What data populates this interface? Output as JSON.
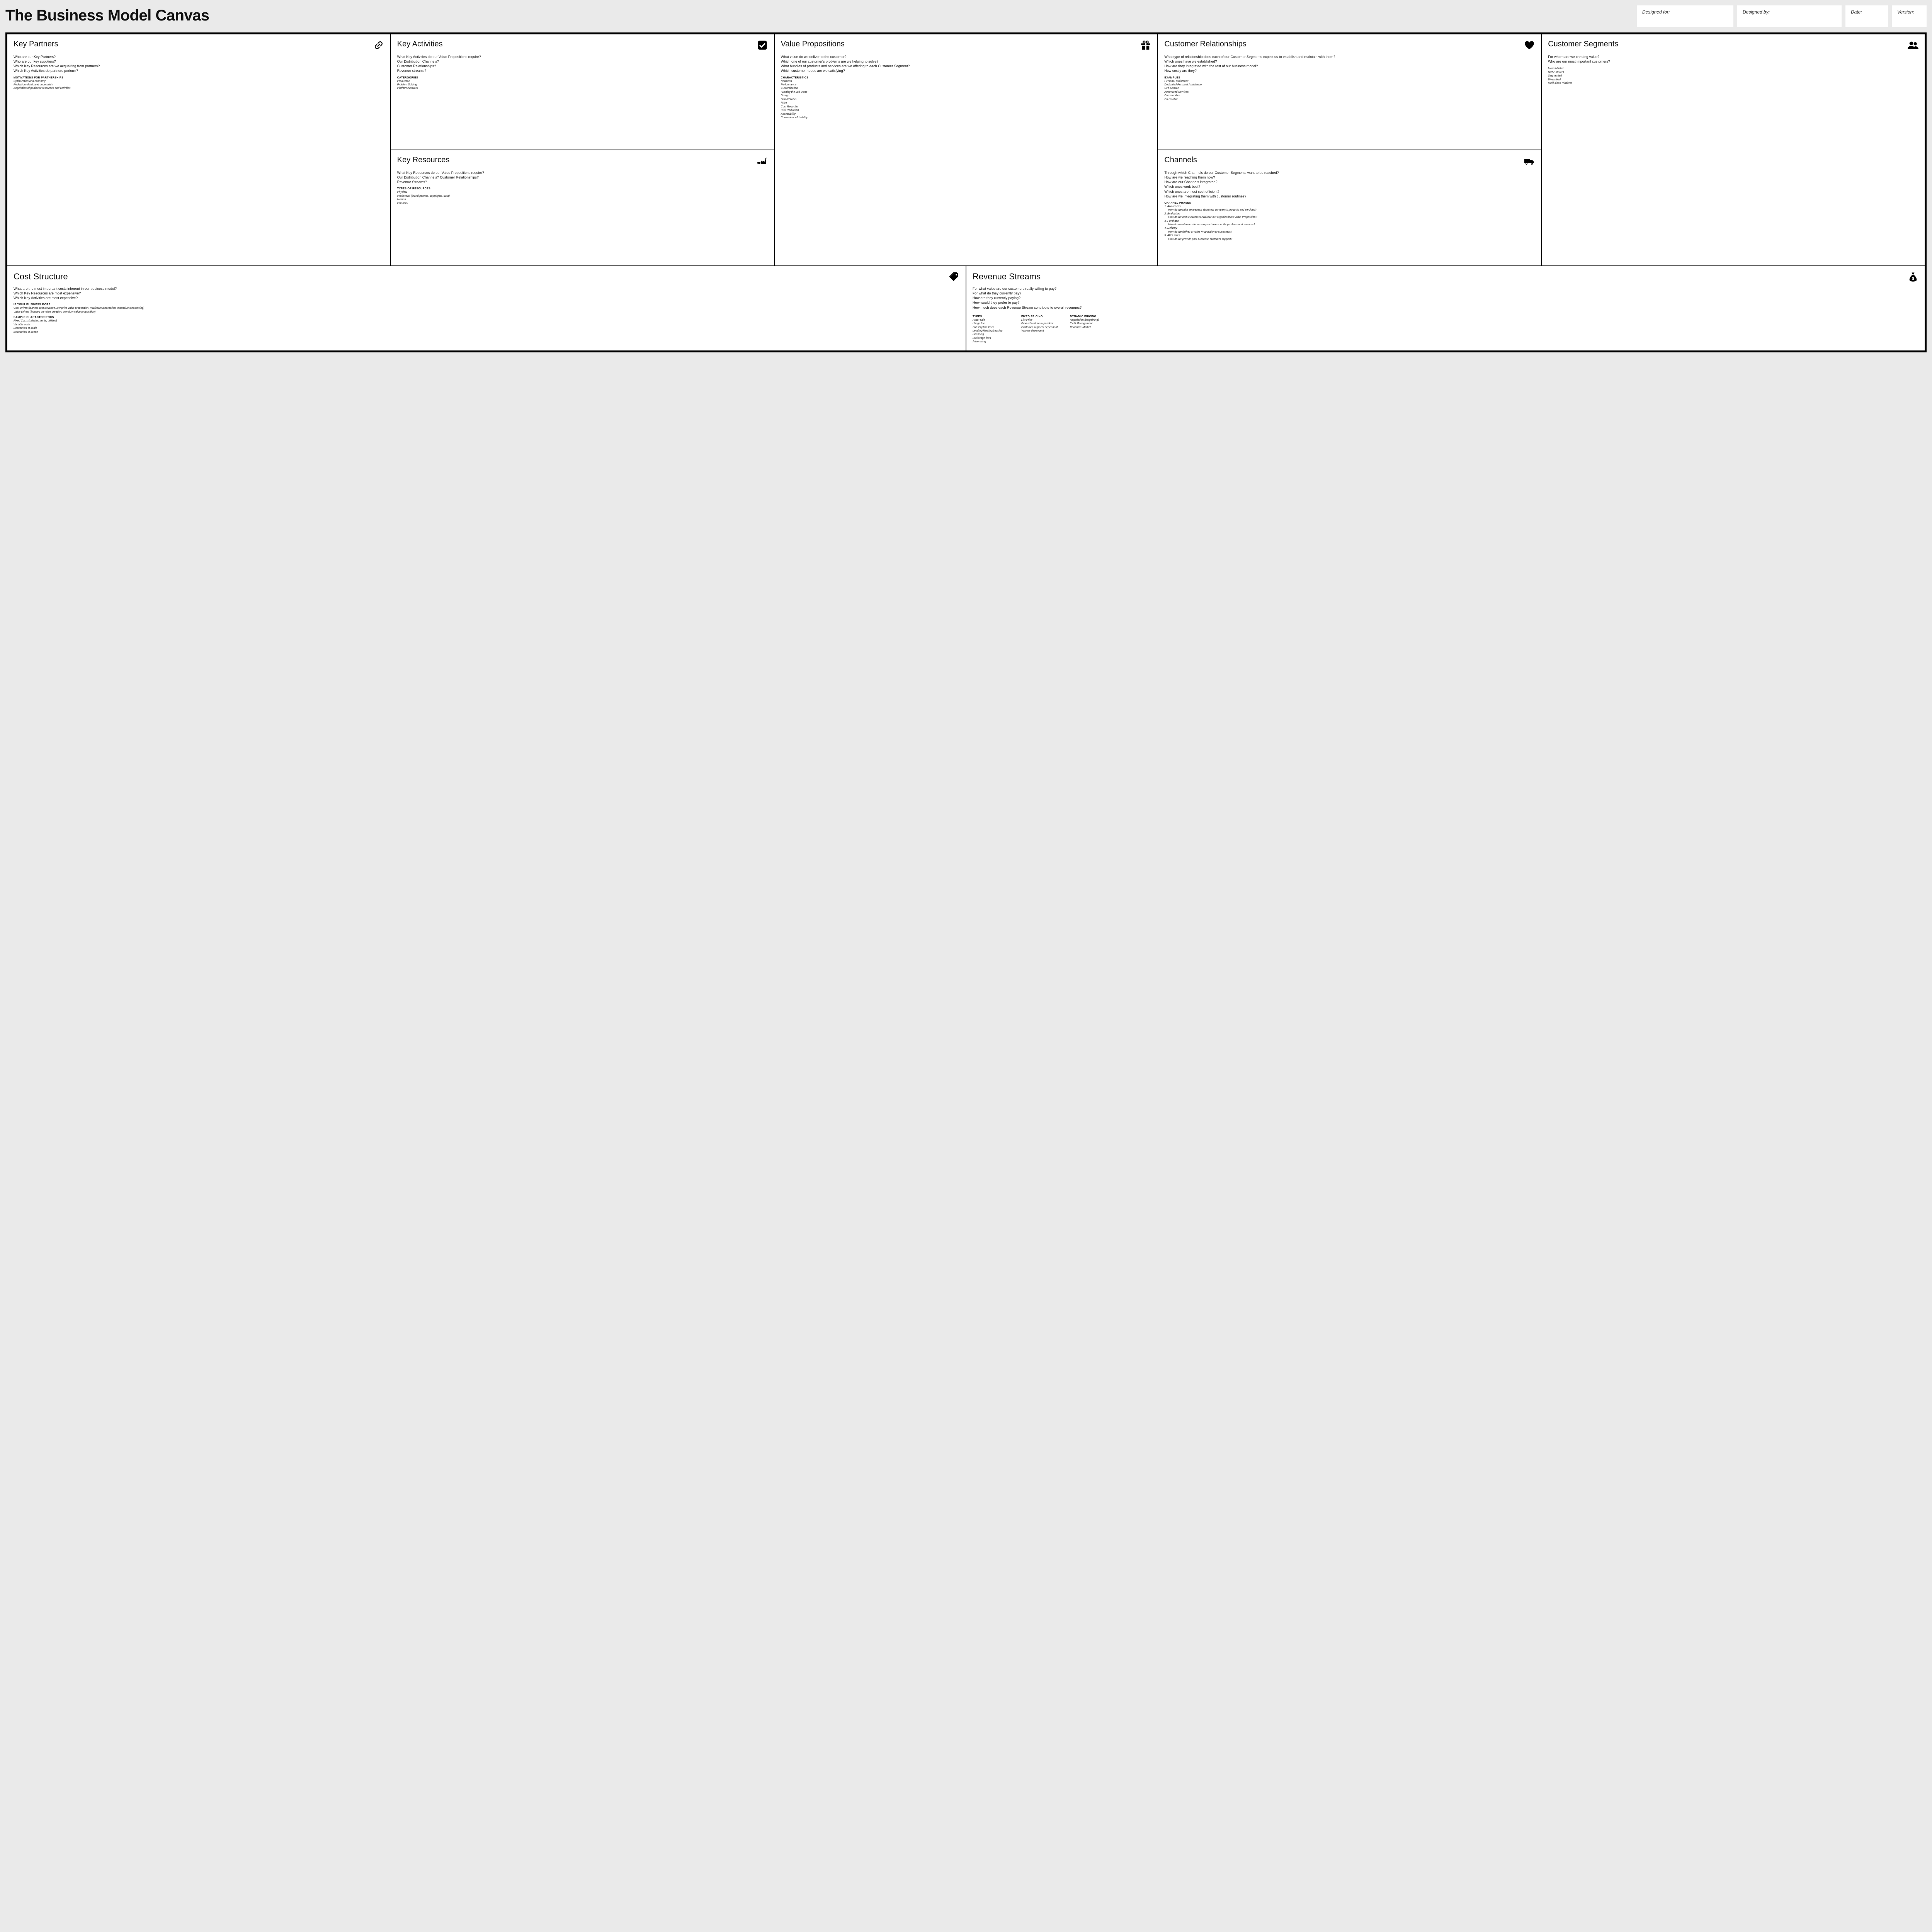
{
  "title": "The Business Model Canvas",
  "meta": {
    "designed_for": "Designed for:",
    "designed_by": "Designed by:",
    "date": "Date:",
    "version": "Version:"
  },
  "colors": {
    "page_bg": "#eaeaea",
    "panel_bg": "#ffffff",
    "border": "#000000",
    "text": "#111111"
  },
  "blocks": {
    "kp": {
      "title": "Key Partners",
      "questions": [
        "Who are our Key Partners?",
        "Who are our key suppliers?",
        "Which Key Resources are we acquairing from partners?",
        "Which Key Activities do partners perform?"
      ],
      "sub1_heading": "motivations for partnerships",
      "sub1_items": [
        "Optimization and economy",
        "Reduction of risk and uncertainty",
        "Acquisition of particular resources and activities"
      ]
    },
    "ka": {
      "title": "Key Activities",
      "questions": [
        "What Key Activities do our Value Propositions require?",
        "Our Distribution Channels?",
        "Customer Relationships?",
        "Revenue streams?"
      ],
      "sub1_heading": "catergories",
      "sub1_items": [
        "Production",
        "Problem Solving",
        "Platform/Network"
      ]
    },
    "kr": {
      "title": "Key Resources",
      "questions": [
        "What Key Resources do our Value Propositions require?",
        "Our Distribution Channels? Customer Relationships?",
        "Revenue Streams?"
      ],
      "sub1_heading": "types of resources",
      "sub1_items": [
        "Physical",
        "Intellectual (brand patents, copyrights, data)",
        "Human",
        "Financial"
      ]
    },
    "vp": {
      "title": "Value Propositions",
      "questions": [
        "What value do we deliver to the customer?",
        "Which one of our customer's problems are we helping to solve?",
        "What bundles of products and services are we offering to each Customer Segment?",
        "Which customer needs are we satisfying?"
      ],
      "sub1_heading": "characteristics",
      "sub1_items": [
        "Newness",
        "Performance",
        "Customization",
        "\"Getting the Job Done\"",
        "Design",
        "Brand/Status",
        "Price",
        "Cost Reduction",
        "Risk Reduction",
        "Accessibility",
        "Convenience/Usability"
      ]
    },
    "cr": {
      "title": "Customer Relationships",
      "questions": [
        "What type of relationship does each of our Customer Segments expect us to establish and maintain with them?",
        "Which ones have we established?",
        "How are they integrated with the rest of our business model?",
        "How costly are they?"
      ],
      "sub1_heading": "examples",
      "sub1_items": [
        "Personal assistance",
        "Dedicated Personal Assistance",
        "Self-Service",
        "Automated Services",
        "Communities",
        "Co-creation"
      ]
    },
    "ch": {
      "title": "Channels",
      "questions": [
        "Through which Channels do our Customer Segments want to be reached?",
        "How are we reaching them now?",
        "How are our Channels integrated?",
        "Which ones work best?",
        "Which ones are most cost-efficient?",
        "How are we integrating them with customer routines?"
      ],
      "sub1_heading": "channel phases",
      "phases": [
        {
          "t": "1. Awareness",
          "d": "How do we raise awareness about our company's products and services?"
        },
        {
          "t": "2. Evaluation",
          "d": "How do we help customers evaluate our organization's Value Proposition?"
        },
        {
          "t": "3. Purchase",
          "d": "How do we allow customers to purchase specific products and services?"
        },
        {
          "t": "4. Delivery",
          "d": "How do we deliver a Value Proposition to customers?"
        },
        {
          "t": "5. After sales",
          "d": "How do we provide post-purchase customer support?"
        }
      ]
    },
    "cs": {
      "title": "Customer Segments",
      "questions": [
        "For whom are we creating value?",
        "Who are our most important customers?"
      ],
      "sub1_items": [
        "Mass Market",
        "Niche Market",
        "Segmented",
        "Diversified",
        "Multi-sided Platform"
      ]
    },
    "cost": {
      "title": "Cost Structure",
      "questions": [
        "What are the most important costs inherent in our business model?",
        "Which Key Resources are most expensive?",
        "Which Key Activities are most expensive?"
      ],
      "sub1_heading": "is your business more",
      "sub1_items": [
        "Cost Driven (leanest cost structure, low price value proposition, maximum automation, extensive outsourcing)",
        "Value Driven (focused on value creation, premium value proposition)"
      ],
      "sub2_heading": "sample characteristics",
      "sub2_items": [
        "Fixed Costs (salaries, rents, utilities)",
        "Variable costs",
        "Economies of scale",
        "Economies of scope"
      ]
    },
    "rev": {
      "title": "Revenue Streams",
      "questions": [
        "For what value are our customers really willing to pay?",
        "For what do they currently pay?",
        "How are they currently paying?",
        "How would they prefer to pay?",
        "How much does each Revenue Stream contribute to overall revenues?"
      ],
      "col1_heading": "types",
      "col1_items": [
        "Asset sale",
        "Usage fee",
        "Subscription Fees",
        "Lending/Renting/Leasing",
        "Licensing",
        "Brokerage fees",
        "Advertising"
      ],
      "col2_heading": "fixed pricing",
      "col2_items": [
        "List Price",
        "Product feature dependent",
        "Customer segment dependent",
        "Volume dependent"
      ],
      "col3_heading": "dynamic pricing",
      "col3_items": [
        "Negotiation (bargaining)",
        "Yield Management",
        "Real-time-Market"
      ]
    }
  }
}
